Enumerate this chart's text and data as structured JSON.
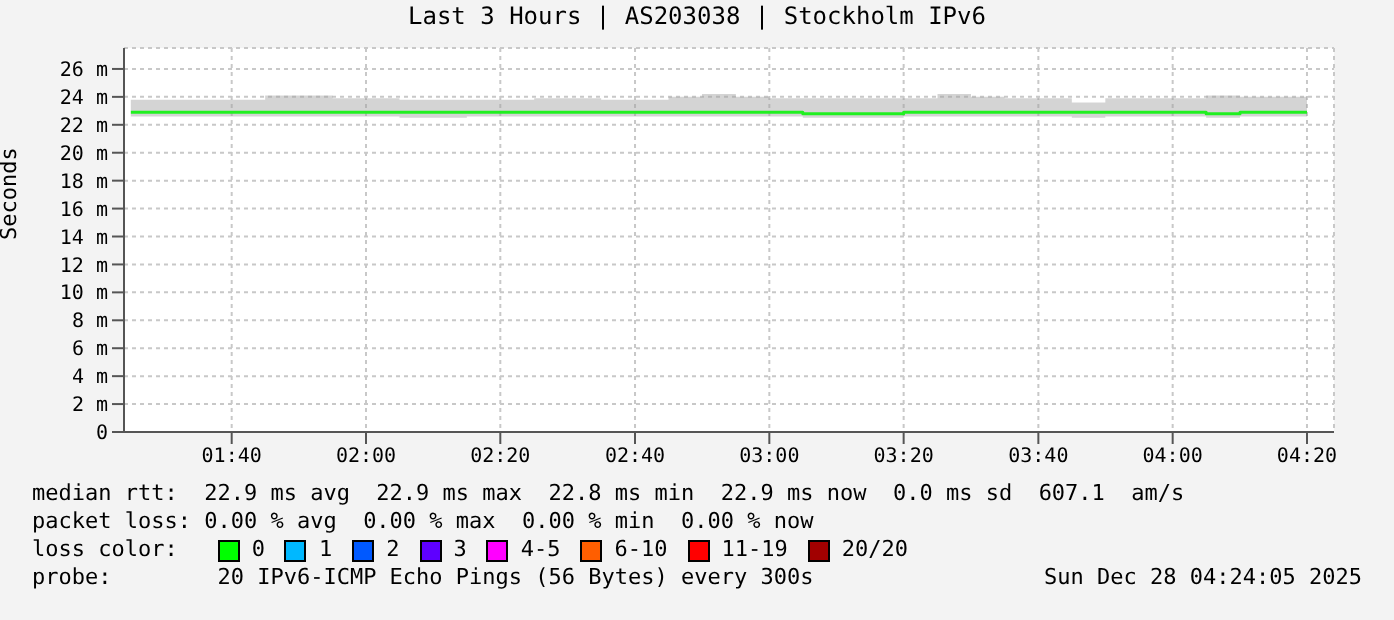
{
  "chart_data": {
    "type": "step",
    "title": "Last 3 Hours | AS203038 | Stockholm IPv6",
    "ylabel": "Seconds",
    "x": [
      1.417,
      1.5,
      1.583,
      1.667,
      1.75,
      1.833,
      1.917,
      2,
      2.083,
      2.167,
      2.25,
      2.333,
      2.417,
      2.5,
      2.583,
      2.667,
      2.75,
      2.833,
      2.917,
      3,
      3.083,
      3.167,
      3.25,
      3.333,
      3.417,
      3.5,
      3.583,
      3.667,
      3.75,
      3.833,
      3.917,
      4,
      4.083,
      4.167,
      4.25,
      4.333
    ],
    "series": [
      {
        "color": "#20f020",
        "values": [
          22.9,
          22.9,
          22.9,
          22.9,
          22.9,
          22.9,
          22.9,
          22.9,
          22.9,
          22.9,
          22.9,
          22.9,
          22.9,
          22.9,
          22.9,
          22.9,
          22.9,
          22.9,
          22.9,
          22.9,
          22.8,
          22.8,
          22.8,
          22.9,
          22.9,
          22.9,
          22.9,
          22.9,
          22.9,
          22.9,
          22.9,
          22.9,
          22.8,
          22.9,
          22.9,
          22.9
        ],
        "lower": [
          22.6,
          22.6,
          22.6,
          22.6,
          22.6,
          22.6,
          22.6,
          22.6,
          22.5,
          22.5,
          22.6,
          22.6,
          22.6,
          22.6,
          22.6,
          22.6,
          22.6,
          22.6,
          22.6,
          22.6,
          22.5,
          22.5,
          22.5,
          22.6,
          22.6,
          22.6,
          22.6,
          22.6,
          22.5,
          22.6,
          22.6,
          22.6,
          22.5,
          22.6,
          22.6,
          22.6
        ],
        "upper": [
          23.8,
          23.8,
          23.8,
          23.8,
          24.1,
          24.1,
          23.9,
          23.9,
          23.8,
          23.8,
          23.8,
          23.8,
          23.9,
          23.9,
          23.8,
          23.8,
          24.0,
          24.2,
          24.0,
          23.9,
          23.9,
          23.9,
          23.9,
          23.9,
          24.2,
          24.0,
          23.9,
          23.9,
          23.6,
          23.9,
          23.9,
          23.9,
          24.1,
          24.0,
          24.0,
          23.9
        ]
      }
    ],
    "xlim": [
      1.4,
      4.4
    ],
    "xticks": [
      {
        "value": 1.667,
        "label": "01:40"
      },
      {
        "value": 2,
        "label": "02:00"
      },
      {
        "value": 2.333,
        "label": "02:20"
      },
      {
        "value": 2.667,
        "label": "02:40"
      },
      {
        "value": 3,
        "label": "03:00"
      },
      {
        "value": 3.333,
        "label": "03:20"
      },
      {
        "value": 3.667,
        "label": "03:40"
      },
      {
        "value": 4,
        "label": "04:00"
      },
      {
        "value": 4.333,
        "label": "04:20"
      }
    ],
    "ylim": [
      0,
      27.5
    ],
    "yticks": [
      {
        "value": 0,
        "label": "0"
      },
      {
        "value": 2,
        "label": "2 m"
      },
      {
        "value": 4,
        "label": "4 m"
      },
      {
        "value": 6,
        "label": "6 m"
      },
      {
        "value": 8,
        "label": "8 m"
      },
      {
        "value": 10,
        "label": "10 m"
      },
      {
        "value": 12,
        "label": "12 m"
      },
      {
        "value": 14,
        "label": "14 m"
      },
      {
        "value": 16,
        "label": "16 m"
      },
      {
        "value": 18,
        "label": "18 m"
      },
      {
        "value": 20,
        "label": "20 m"
      },
      {
        "value": 22,
        "label": "22 m"
      },
      {
        "value": 24,
        "label": "24 m"
      },
      {
        "value": 26,
        "label": "26 m"
      }
    ],
    "grid": true,
    "annotations": [
      "median rtt:  22.9 ms avg  22.9 ms max  22.8 ms min  22.9 ms now  0.0 ms sd  607.1  am/s",
      "packet loss: 0.00 % avg  0.00 % max  0.00 % min  0.00 % now",
      "loss color:",
      "0",
      "1",
      "2",
      "3",
      "4-5",
      "6-10",
      "11-19",
      "20/20",
      "probe:        20 IPv6-ICMP Echo Pings (56 Bytes) every 300s",
      "Sun Dec 28 04:24:05 2025"
    ]
  }
}
